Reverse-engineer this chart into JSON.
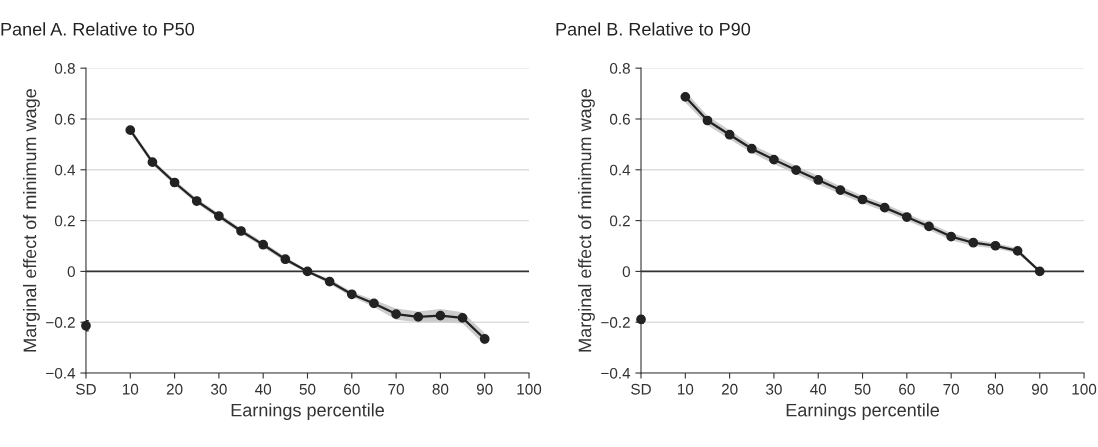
{
  "chart_data": [
    {
      "type": "line",
      "title": "Panel A. Relative to P50",
      "xlabel": "Earnings percentile",
      "ylabel": "Marginal effect of minimum wage",
      "xlim": [
        0,
        100
      ],
      "xticks": [
        {
          "value": 0,
          "label": "SD"
        },
        10,
        20,
        30,
        40,
        50,
        60,
        70,
        80,
        90,
        100
      ],
      "ylim": [
        -0.4,
        0.8
      ],
      "yticks": [
        -0.4,
        -0.2,
        0,
        0.2,
        0.4,
        0.6,
        0.8
      ],
      "grid": "y",
      "marker": "circle",
      "line_style": "solid",
      "legend": false,
      "ref_lines": [
        {
          "axis": "y",
          "value": 0,
          "color": "#333333"
        }
      ],
      "series": [
        {
          "color": "#222222",
          "x": [
            10,
            15,
            20,
            25,
            30,
            35,
            40,
            45,
            50,
            55,
            60,
            65,
            70,
            75,
            80,
            85,
            90
          ],
          "values": [
            0.556,
            0.43,
            0.35,
            0.277,
            0.218,
            0.159,
            0.105,
            0.048,
            0,
            -0.04,
            -0.09,
            -0.126,
            -0.168,
            -0.179,
            -0.174,
            -0.183,
            -0.266
          ],
          "lower": [
            0.546,
            0.42,
            0.34,
            0.267,
            0.208,
            0.149,
            0.095,
            0.038,
            -0.005,
            -0.05,
            -0.1,
            -0.14,
            -0.19,
            -0.2,
            -0.2,
            -0.205,
            -0.29
          ],
          "upper": [
            0.566,
            0.44,
            0.36,
            0.287,
            0.228,
            0.169,
            0.115,
            0.058,
            0.005,
            -0.03,
            -0.08,
            -0.112,
            -0.146,
            -0.158,
            -0.148,
            -0.161,
            -0.242
          ]
        },
        {
          "type": "scatter",
          "color": "#222222",
          "x": [
            0
          ],
          "values": [
            -0.214
          ],
          "errors": [
            0.02
          ]
        }
      ]
    },
    {
      "type": "line",
      "title": "Panel B. Relative to P90",
      "xlabel": "Earnings percentile",
      "ylabel": "Marginal effect of minimum wage",
      "xlim": [
        0,
        100
      ],
      "xticks": [
        {
          "value": 0,
          "label": "SD"
        },
        10,
        20,
        30,
        40,
        50,
        60,
        70,
        80,
        90,
        100
      ],
      "ylim": [
        -0.4,
        0.8
      ],
      "yticks": [
        -0.4,
        -0.2,
        0,
        0.2,
        0.4,
        0.6,
        0.8
      ],
      "grid": "y",
      "marker": "circle",
      "line_style": "solid",
      "legend": false,
      "ref_lines": [
        {
          "axis": "y",
          "value": 0,
          "color": "#333333"
        }
      ],
      "series": [
        {
          "color": "#222222",
          "x": [
            10,
            15,
            20,
            25,
            30,
            35,
            40,
            45,
            50,
            55,
            60,
            65,
            70,
            75,
            80,
            85,
            90
          ],
          "values": [
            0.687,
            0.594,
            0.538,
            0.483,
            0.44,
            0.399,
            0.36,
            0.32,
            0.283,
            0.251,
            0.214,
            0.177,
            0.137,
            0.113,
            0.101,
            0.081,
            0
          ],
          "lower": [
            0.665,
            0.575,
            0.52,
            0.467,
            0.423,
            0.383,
            0.343,
            0.305,
            0.268,
            0.236,
            0.2,
            0.163,
            0.123,
            0.1,
            0.09,
            0.071,
            -0.005
          ],
          "upper": [
            0.709,
            0.613,
            0.556,
            0.499,
            0.457,
            0.415,
            0.377,
            0.335,
            0.298,
            0.266,
            0.228,
            0.191,
            0.151,
            0.126,
            0.112,
            0.091,
            0.005
          ]
        },
        {
          "type": "scatter",
          "color": "#222222",
          "x": [
            0
          ],
          "values": [
            -0.189
          ],
          "errors": [
            0.015
          ]
        }
      ]
    }
  ]
}
